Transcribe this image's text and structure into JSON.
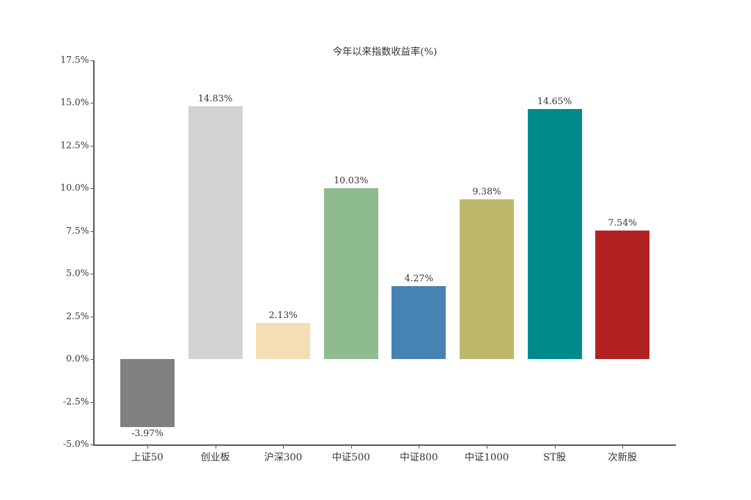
{
  "chart_data": {
    "type": "bar",
    "title": "今年以来指数收益率(%)",
    "xlabel": "",
    "ylabel": "",
    "categories": [
      "上证50",
      "创业板",
      "沪深300",
      "中证500",
      "中证800",
      "中证1000",
      "ST股",
      "次新股"
    ],
    "values": [
      -3.97,
      14.83,
      2.13,
      10.03,
      4.27,
      9.38,
      14.65,
      7.54
    ],
    "value_labels": [
      "-3.97%",
      "14.83%",
      "2.13%",
      "10.03%",
      "4.27%",
      "9.38%",
      "14.65%",
      "7.54%"
    ],
    "colors": [
      "#808080",
      "#d3d3d3",
      "#f5deb3",
      "#8fbc8f",
      "#4682b4",
      "#bdb76b",
      "#008b8b",
      "#b22222"
    ],
    "ylim": [
      -5.0,
      17.5
    ],
    "yticks": [
      -5.0,
      -2.5,
      0.0,
      2.5,
      5.0,
      7.5,
      10.0,
      12.5,
      15.0,
      17.5
    ],
    "ytick_labels": [
      "-5.0%",
      "-2.5%",
      "0.0%",
      "2.5%",
      "5.0%",
      "7.5%",
      "10.0%",
      "12.5%",
      "15.0%",
      "17.5%"
    ],
    "grid": false,
    "legend": null
  }
}
